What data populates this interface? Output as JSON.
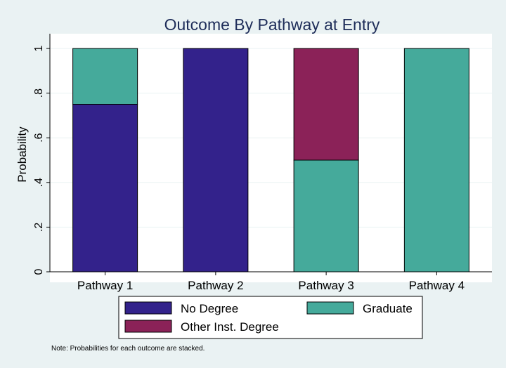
{
  "chart_data": {
    "type": "bar",
    "stacked": true,
    "title": "Outcome By Pathway at Entry",
    "ylabel": "Probability",
    "xlabel": "",
    "ylim": [
      0,
      1
    ],
    "yticks": [
      {
        "value": 0,
        "label": "0"
      },
      {
        "value": 0.2,
        "label": ".2"
      },
      {
        "value": 0.4,
        "label": ".4"
      },
      {
        "value": 0.6,
        "label": ".6"
      },
      {
        "value": 0.8,
        "label": ".8"
      },
      {
        "value": 1,
        "label": "1"
      }
    ],
    "grid": true,
    "categories": [
      "Pathway 1",
      "Pathway 2",
      "Pathway 3",
      "Pathway 4"
    ],
    "series": [
      {
        "name": "No Degree",
        "color": "#33228b",
        "values": [
          0.75,
          1.0,
          0.0,
          0.0
        ]
      },
      {
        "name": "Graduate",
        "color": "#45aa9b",
        "values": [
          0.25,
          0.0,
          0.5,
          1.0
        ]
      },
      {
        "name": "Other Inst. Degree",
        "color": "#8b2258",
        "values": [
          0.0,
          0.0,
          0.5,
          0.0
        ]
      }
    ],
    "legend_position": "bottom",
    "note": "Note: Probabilities for each outcome are stacked."
  },
  "colors": {
    "background": "#eaf2f3",
    "plot_background": "#ffffff",
    "grid": "#eaf2f3",
    "title": "#1e2d59"
  }
}
